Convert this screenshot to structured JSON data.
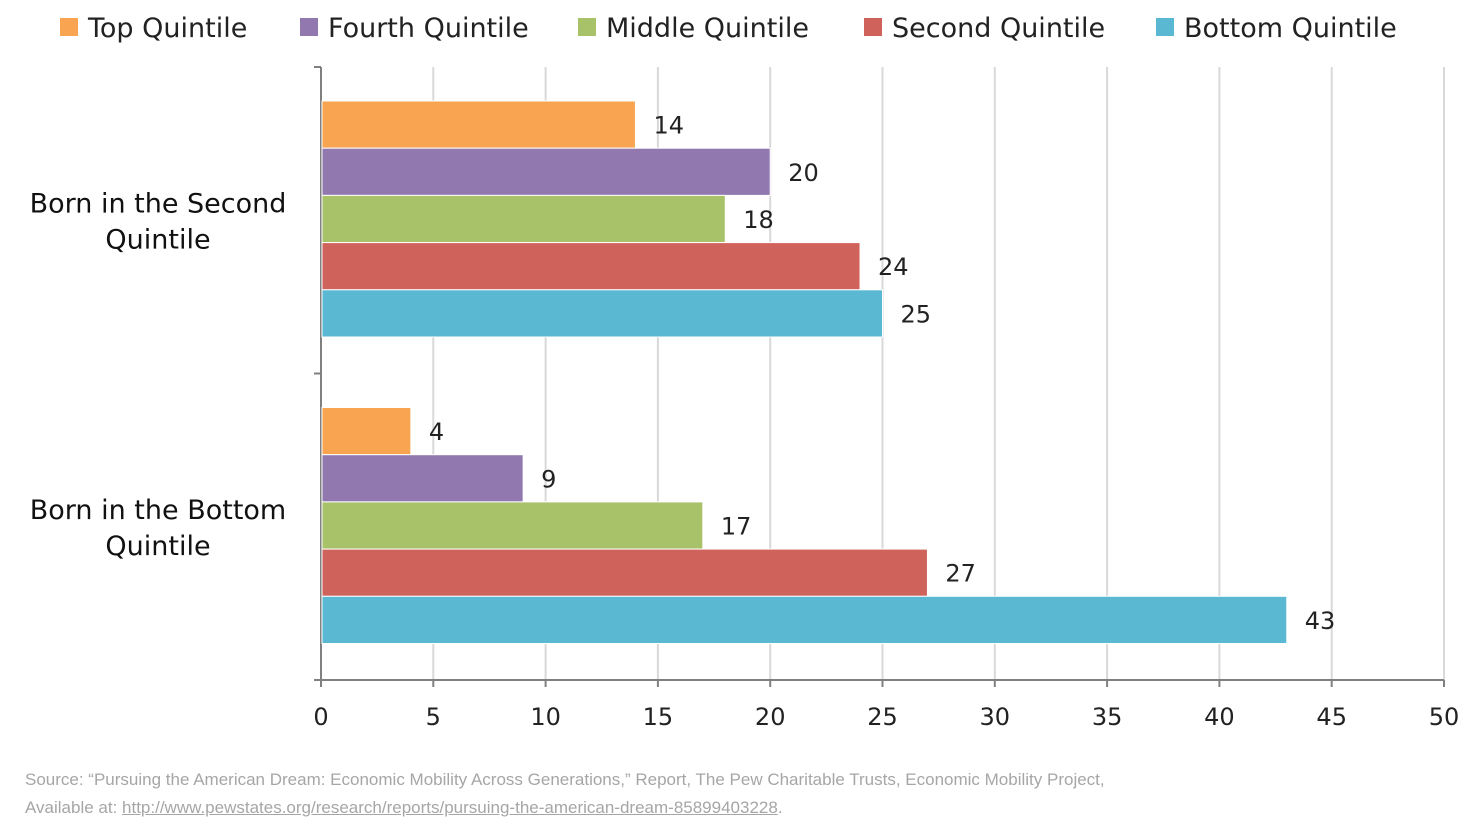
{
  "chart_data": {
    "type": "bar",
    "orientation": "horizontal",
    "categories": [
      "Born in the Second Quintile",
      "Born in the Bottom Quintile"
    ],
    "category_lines": [
      [
        "Born in the Second",
        "Quintile"
      ],
      [
        "Born in the Bottom",
        "Quintile"
      ]
    ],
    "series": [
      {
        "name": "Top Quintile",
        "color": "#f9a450",
        "values": [
          14,
          4
        ]
      },
      {
        "name": "Fourth Quintile",
        "color": "#9179b0",
        "values": [
          20,
          9
        ]
      },
      {
        "name": "Middle Quintile",
        "color": "#a8c26a",
        "values": [
          18,
          17
        ]
      },
      {
        "name": "Second Quintile",
        "color": "#cf625b",
        "values": [
          24,
          27
        ]
      },
      {
        "name": "Bottom Quintile",
        "color": "#5bb8d3",
        "values": [
          25,
          43
        ]
      }
    ],
    "xlim": [
      0,
      50
    ],
    "xticks": [
      "0",
      "5",
      "10",
      "15",
      "20",
      "25",
      "30",
      "35",
      "40",
      "45",
      "50"
    ],
    "grid": true,
    "legend": "top",
    "data_labels": true
  },
  "source": {
    "line1": "Source: “Pursuing the American Dream: Economic Mobility Across Generations,” Report, The Pew Charitable Trusts, Economic Mobility Project,",
    "prefix": "Available at: ",
    "link": "http://www.pewstates.org/research/reports/pursuing-the-american-dream-85899403228",
    "suffix": "."
  }
}
